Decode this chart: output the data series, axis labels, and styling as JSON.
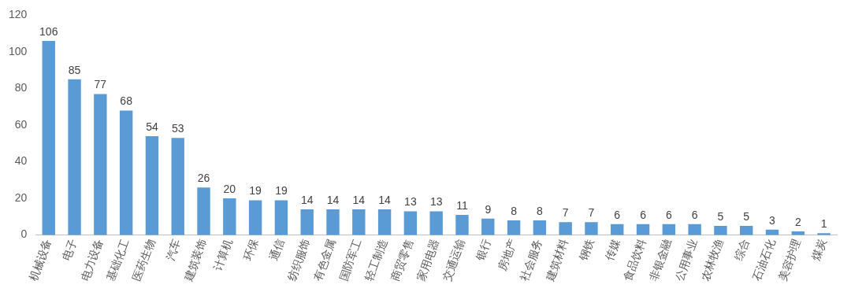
{
  "chart_data": {
    "type": "bar",
    "categories": [
      "机械设备",
      "电子",
      "电力设备",
      "基础化工",
      "医药生物",
      "汽车",
      "建筑装饰",
      "计算机",
      "环保",
      "通信",
      "纺织服饰",
      "有色金属",
      "国防军工",
      "轻工制造",
      "商贸零售",
      "家用电器",
      "交通运输",
      "银行",
      "房地产",
      "社会服务",
      "建筑材料",
      "钢铁",
      "传媒",
      "食品饮料",
      "非银金融",
      "公用事业",
      "农林牧渔",
      "综合",
      "石油石化",
      "美容护理",
      "煤炭"
    ],
    "values": [
      106,
      85,
      77,
      68,
      54,
      53,
      26,
      20,
      19,
      19,
      14,
      14,
      14,
      14,
      13,
      13,
      11,
      9,
      8,
      8,
      7,
      7,
      6,
      6,
      6,
      6,
      5,
      5,
      3,
      2,
      1
    ],
    "color": "#5b9bd5",
    "ylim": [
      0,
      120
    ],
    "yticks": [
      0,
      20,
      40,
      60,
      80,
      100,
      120
    ],
    "grid": false,
    "legend": false,
    "data_labels": true
  }
}
